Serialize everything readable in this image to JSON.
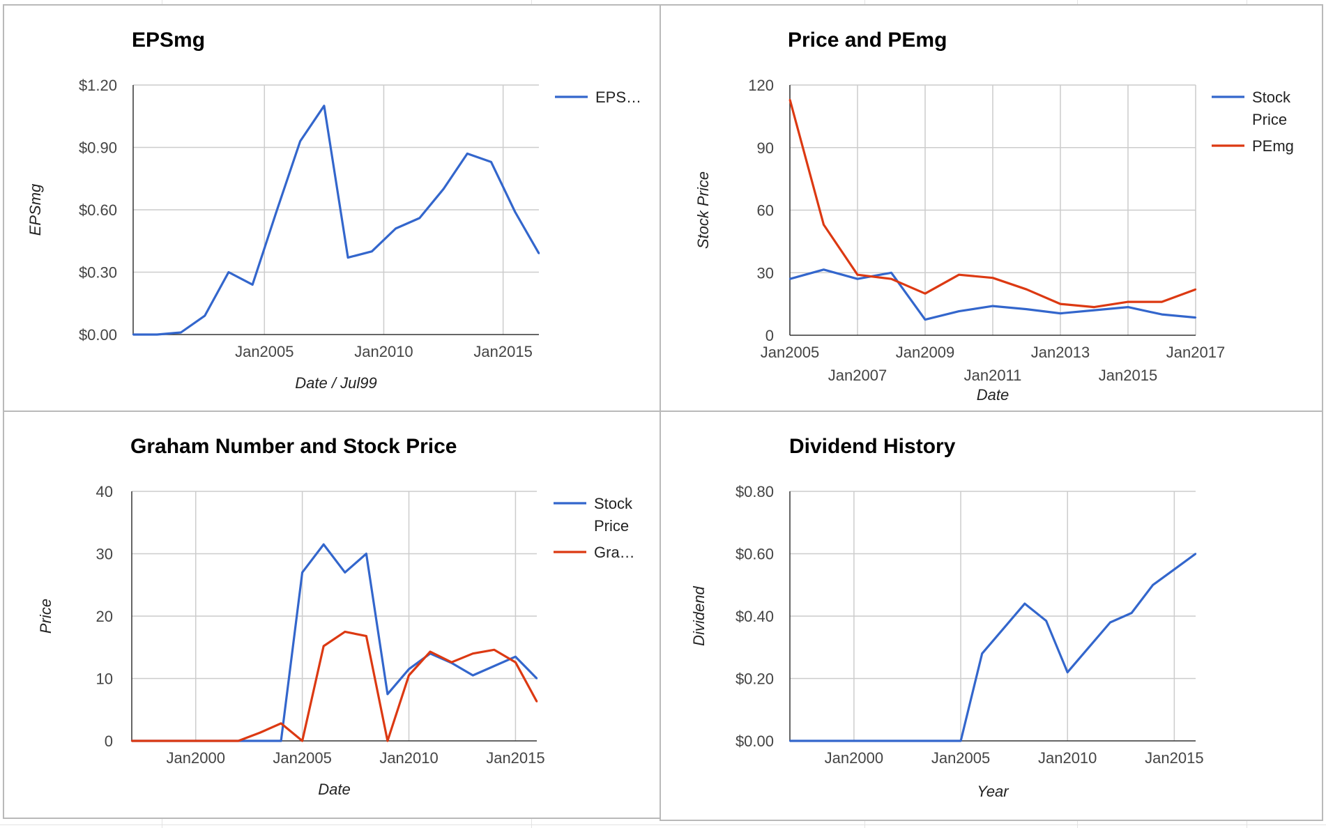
{
  "colors": {
    "blue": "#3366cc",
    "red": "#dc3912",
    "grid": "#cccccc"
  },
  "chart_data": [
    {
      "type": "line",
      "title": "EPSmg",
      "xlabel": "Date / Jul99",
      "ylabel": "EPSmg",
      "x_ticks": [
        "Jan2005",
        "Jan2010",
        "Jan2015"
      ],
      "y_ticks": [
        "$0.00",
        "$0.30",
        "$0.60",
        "$0.90",
        "$1.20"
      ],
      "ylim": [
        0,
        1.2
      ],
      "xlim": [
        1999.5,
        2016.5
      ],
      "grid": true,
      "legend": "right",
      "series": [
        {
          "name": "EPSmg",
          "legend_label": "EPS…",
          "color": "#3366cc",
          "x": [
            1999.5,
            2000.5,
            2001.5,
            2002.5,
            2003.5,
            2004.5,
            2005.5,
            2006.5,
            2007.5,
            2008.5,
            2009.5,
            2010.5,
            2011.5,
            2012.5,
            2013.5,
            2014.5,
            2015.5,
            2016.5
          ],
          "values": [
            0,
            0,
            0.01,
            0.09,
            0.3,
            0.24,
            0.59,
            0.93,
            1.1,
            0.37,
            0.4,
            0.51,
            0.56,
            0.7,
            0.87,
            0.83,
            0.59,
            0.39
          ]
        }
      ]
    },
    {
      "type": "line",
      "title": "Price and PEmg",
      "xlabel": "Date",
      "ylabel": "Stock Price",
      "x_ticks": [
        "Jan2005",
        "Jan2007",
        "Jan2009",
        "Jan2011",
        "Jan2013",
        "Jan2015",
        "Jan2017"
      ],
      "y_ticks": [
        "0",
        "30",
        "60",
        "90",
        "120"
      ],
      "ylim": [
        0,
        120
      ],
      "xlim": [
        2005,
        2017
      ],
      "grid": true,
      "legend": "right",
      "series": [
        {
          "name": "Stock Price",
          "legend_lines": [
            "Stock",
            "Price"
          ],
          "color": "#3366cc",
          "x": [
            2005,
            2006,
            2007,
            2008,
            2009,
            2010,
            2011,
            2012,
            2013,
            2014,
            2015,
            2016,
            2017
          ],
          "values": [
            27,
            31.5,
            27,
            30,
            7.5,
            11.5,
            14,
            12.5,
            10.5,
            12,
            13.5,
            10,
            8.5
          ]
        },
        {
          "name": "PEmg",
          "legend_lines": [
            "PEmg"
          ],
          "color": "#dc3912",
          "x": [
            2005,
            2006,
            2007,
            2008,
            2009,
            2010,
            2011,
            2012,
            2013,
            2014,
            2015,
            2016,
            2017
          ],
          "values": [
            113,
            53,
            29,
            27,
            20,
            29,
            27.5,
            22,
            15,
            13.5,
            16,
            16,
            22
          ]
        }
      ]
    },
    {
      "type": "line",
      "title": "Graham Number and Stock Price",
      "xlabel": "Date",
      "ylabel": "Price",
      "x_ticks": [
        "Jan2000",
        "Jan2005",
        "Jan2010",
        "Jan2015"
      ],
      "y_ticks": [
        "0",
        "10",
        "20",
        "30",
        "40"
      ],
      "ylim": [
        0,
        40
      ],
      "xlim": [
        1997,
        2016
      ],
      "grid": true,
      "legend": "right",
      "series": [
        {
          "name": "Stock Price",
          "legend_lines": [
            "Stock",
            "Price"
          ],
          "color": "#3366cc",
          "x": [
            1997,
            2000,
            2002,
            2004,
            2005,
            2006,
            2007,
            2008,
            2009,
            2010,
            2011,
            2012,
            2013,
            2014,
            2015,
            2016
          ],
          "values": [
            0,
            0,
            0,
            0,
            27,
            31.5,
            27,
            30,
            7.5,
            11.5,
            14,
            12.5,
            10.5,
            12,
            13.5,
            10
          ]
        },
        {
          "name": "Graham Number",
          "legend_lines": [
            "Gra…"
          ],
          "color": "#dc3912",
          "x": [
            1997,
            2000,
            2002,
            2003,
            2004,
            2005,
            2006,
            2007,
            2008,
            2009,
            2010,
            2011,
            2012,
            2013,
            2014,
            2015,
            2016
          ],
          "values": [
            0,
            0,
            0,
            1.3,
            2.8,
            0,
            15.2,
            17.5,
            16.8,
            0,
            10.5,
            14.3,
            12.6,
            14,
            14.6,
            12.6,
            6.3
          ]
        }
      ]
    },
    {
      "type": "line",
      "title": "Dividend History",
      "xlabel": "Year",
      "ylabel": "Dividend",
      "x_ticks": [
        "Jan2000",
        "Jan2005",
        "Jan2010",
        "Jan2015"
      ],
      "y_ticks": [
        "$0.00",
        "$0.20",
        "$0.40",
        "$0.60",
        "$0.80"
      ],
      "ylim": [
        0,
        0.8
      ],
      "xlim": [
        1997,
        2016
      ],
      "grid": true,
      "legend": "none",
      "series": [
        {
          "name": "Dividend",
          "color": "#3366cc",
          "x": [
            1997,
            2001,
            2005,
            2006,
            2007,
            2008,
            2009,
            2010,
            2011,
            2012,
            2013,
            2014,
            2015,
            2016
          ],
          "values": [
            0,
            0,
            0,
            0.28,
            0.36,
            0.44,
            0.385,
            0.22,
            0.3,
            0.38,
            0.41,
            0.5,
            0.55,
            0.6
          ]
        }
      ]
    }
  ]
}
